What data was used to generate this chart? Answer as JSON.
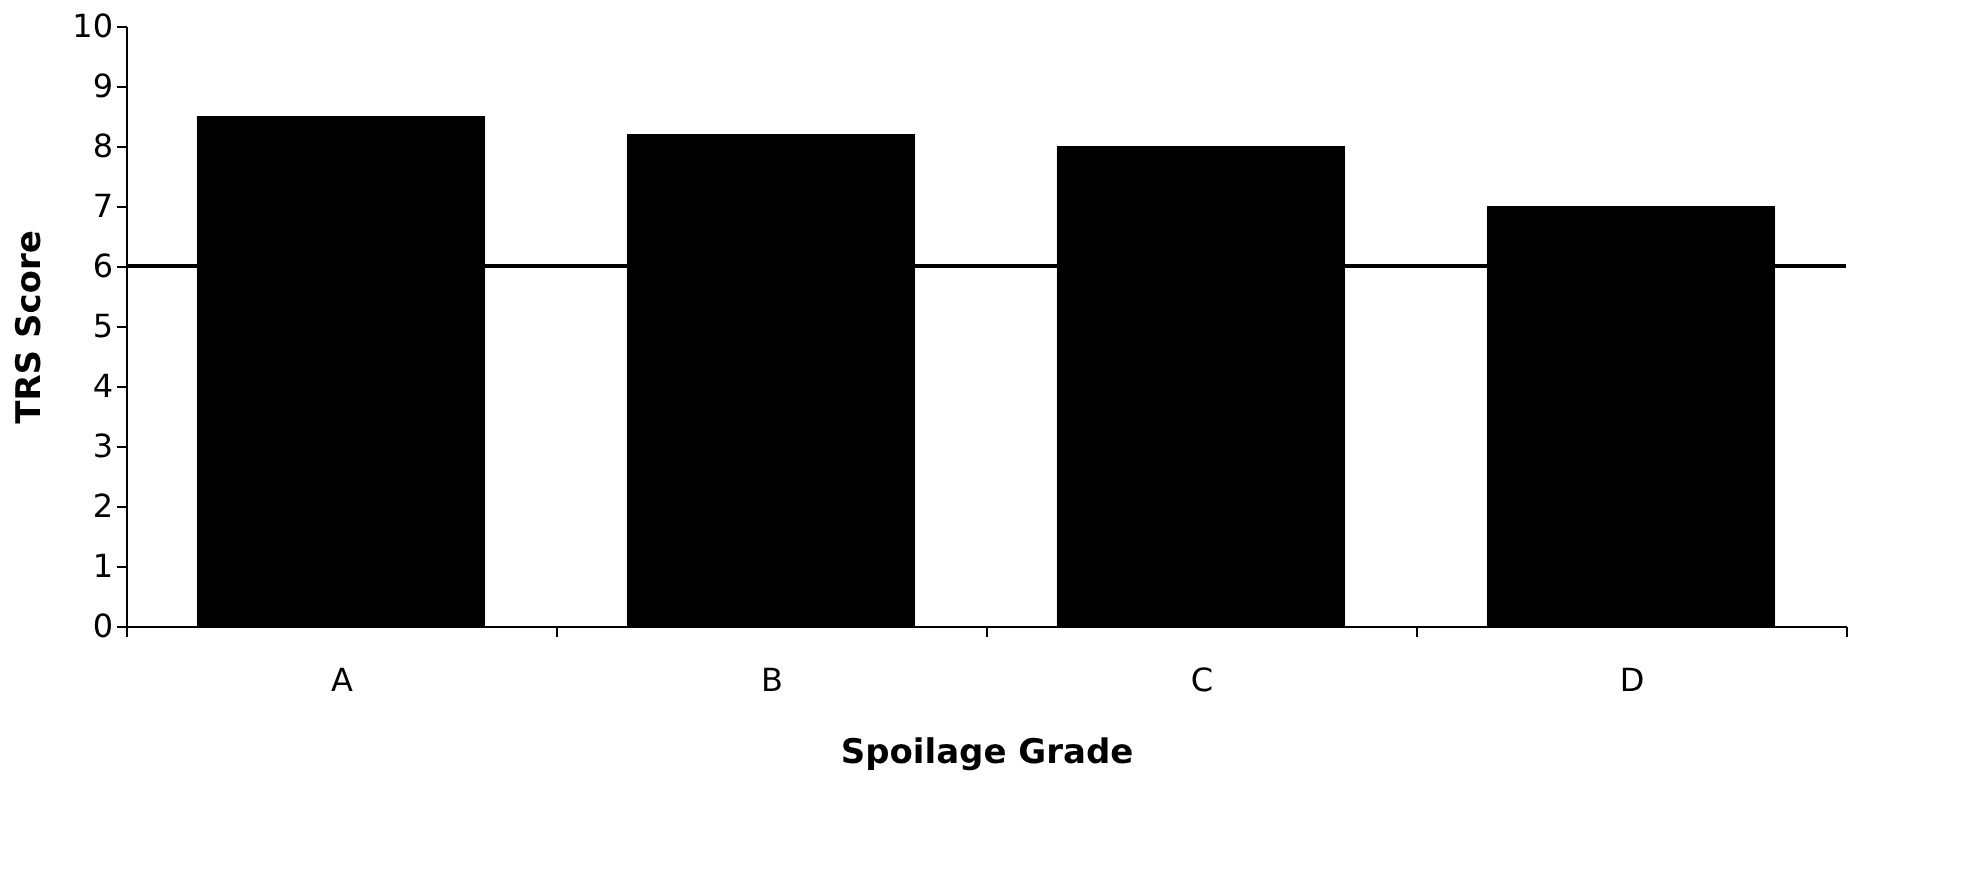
{
  "chart_data": {
    "type": "bar",
    "xlabel": "Spoilage Grade",
    "ylabel": "TRS Score",
    "categories": [
      "A",
      "B",
      "C",
      "D"
    ],
    "values": [
      8.5,
      8.2,
      8.0,
      7.0
    ],
    "color": "#000000",
    "ylim": [
      0,
      10
    ],
    "yticks": [
      0,
      1,
      2,
      3,
      4,
      5,
      6,
      7,
      8,
      9,
      10
    ],
    "grid": false,
    "ref_lines": [
      {
        "axis": "y",
        "value": 6,
        "color": "#000000",
        "line_style": "solid"
      }
    ]
  }
}
